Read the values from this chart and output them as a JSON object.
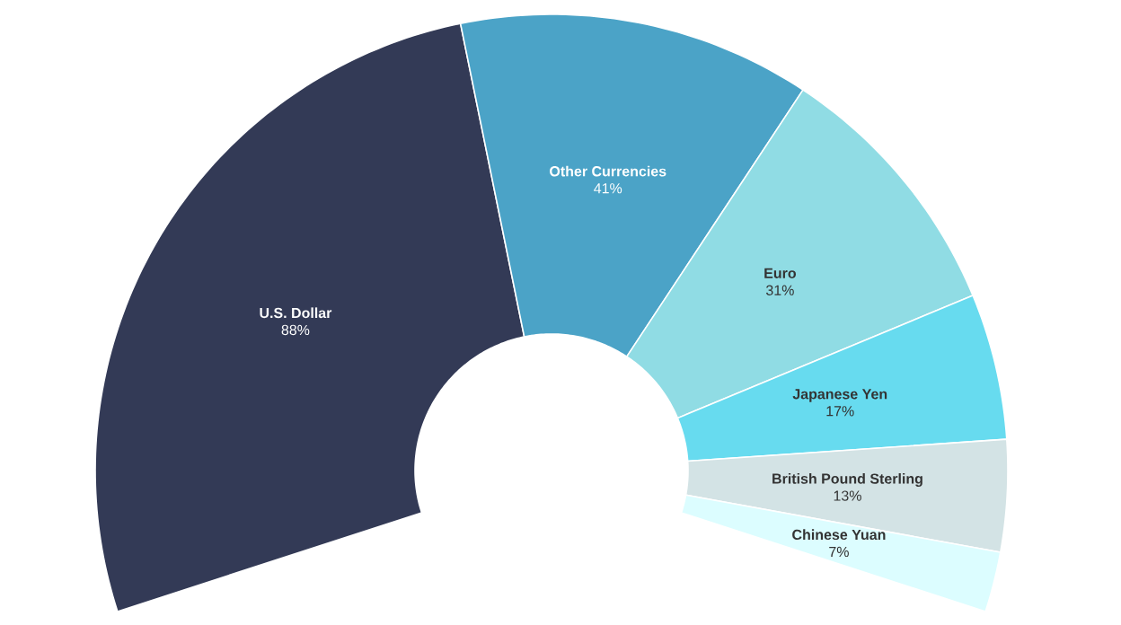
{
  "chart_data": {
    "type": "donut",
    "categories": [
      "U.S. Dollar",
      "Other Currencies",
      "Euro",
      "Japanese Yen",
      "British Pound Sterling",
      "Chinese Yuan"
    ],
    "values": [
      88,
      41,
      31,
      17,
      13,
      7
    ],
    "value_labels": [
      "88%",
      "41%",
      "31%",
      "17%",
      "13%",
      "7%"
    ],
    "colors": [
      "#333a56",
      "#4ba3c7",
      "#90dce4",
      "#67dbef",
      "#d3e3e5",
      "#dcfdff"
    ]
  }
}
